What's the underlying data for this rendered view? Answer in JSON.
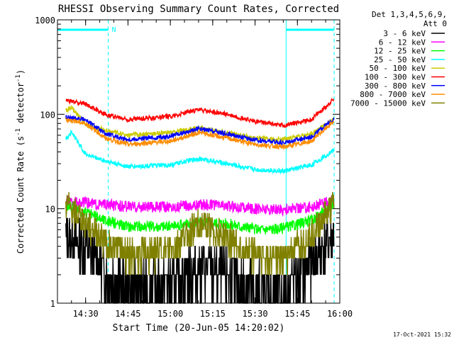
{
  "chart_data": {
    "type": "line",
    "title": "RHESSI Observing Summary Count Rates, Corrected",
    "xlabel": "Start Time (20-Jun-05 14:20:02)",
    "ylabel_main": "Corrected Count Rate (s",
    "ylabel_sup1": "-1",
    "ylabel_mid": " detector",
    "ylabel_sup2": "-1",
    "ylabel_end": ")",
    "yscale": "log",
    "ylim": [
      1,
      1000
    ],
    "xlim": [
      "14:20:02",
      "16:00"
    ],
    "x_ticks": [
      "14:30",
      "14:45",
      "15:00",
      "15:15",
      "15:30",
      "15:45",
      "16:00"
    ],
    "y_ticks": [
      "1",
      "10",
      "100",
      "1000"
    ],
    "footer": "17-Oct-2021 15:32",
    "legend_header": [
      "Det 1,3,4,5,6,9,",
      "Att 0"
    ],
    "legend_position": "right",
    "marker_label": "N",
    "markers": [
      {
        "time": "14:20:02",
        "style": "solid"
      },
      {
        "time": "14:38",
        "style": "dashed"
      },
      {
        "time": "15:41",
        "style": "solid"
      },
      {
        "time": "15:58",
        "style": "dashed"
      }
    ],
    "night_bars": [
      {
        "start": "14:20:02",
        "end": "14:38"
      },
      {
        "start": "15:41",
        "end": "15:58"
      }
    ],
    "series": [
      {
        "name": "3 - 6 keV",
        "color": "#000000",
        "x": [
          "14:23",
          "14:30",
          "14:37",
          "14:45",
          "15:00",
          "15:10",
          "15:20",
          "15:30",
          "15:40",
          "15:50",
          "15:58"
        ],
        "values": [
          5,
          4,
          2.2,
          1.4,
          1.6,
          2.3,
          2.0,
          1.4,
          1.3,
          2.8,
          5.5
        ]
      },
      {
        "name": "6 - 12 keV",
        "color": "#ff00ff",
        "x": [
          "14:23",
          "14:30",
          "14:37",
          "14:45",
          "15:00",
          "15:10",
          "15:20",
          "15:30",
          "15:40",
          "15:50",
          "15:58"
        ],
        "values": [
          12,
          11.5,
          11,
          10.5,
          10.5,
          11,
          10.8,
          10,
          9.8,
          10.5,
          12.5
        ]
      },
      {
        "name": "12 - 25 keV",
        "color": "#00ff00",
        "x": [
          "14:23",
          "14:30",
          "14:37",
          "14:45",
          "15:00",
          "15:10",
          "15:20",
          "15:30",
          "15:40",
          "15:50",
          "15:58"
        ],
        "values": [
          11,
          9,
          7.5,
          6.5,
          6.5,
          7.2,
          7,
          6,
          6.2,
          7.5,
          11.5
        ]
      },
      {
        "name": "25 - 50 keV",
        "color": "#00ffff",
        "x": [
          "14:23",
          "14:25",
          "14:30",
          "14:37",
          "14:45",
          "15:00",
          "15:10",
          "15:20",
          "15:30",
          "15:40",
          "15:50",
          "15:58"
        ],
        "values": [
          55,
          65,
          38,
          32,
          28,
          29,
          34,
          30,
          26,
          25,
          29,
          42
        ]
      },
      {
        "name": "50 - 100 keV",
        "color": "#cccc00",
        "x": [
          "14:23",
          "14:25",
          "14:30",
          "14:37",
          "14:45",
          "15:00",
          "15:10",
          "15:20",
          "15:30",
          "15:40",
          "15:50",
          "15:58"
        ],
        "values": [
          110,
          118,
          78,
          68,
          60,
          64,
          72,
          64,
          56,
          54,
          62,
          90
        ]
      },
      {
        "name": "100 - 300 keV",
        "color": "#ff0000",
        "x": [
          "14:23",
          "14:30",
          "14:37",
          "14:45",
          "15:00",
          "15:10",
          "15:20",
          "15:30",
          "15:40",
          "15:50",
          "15:58"
        ],
        "values": [
          140,
          128,
          100,
          88,
          95,
          112,
          100,
          84,
          76,
          88,
          145
        ]
      },
      {
        "name": "300 - 800 keV",
        "color": "#0000ff",
        "x": [
          "14:23",
          "14:30",
          "14:37",
          "14:45",
          "15:00",
          "15:10",
          "15:20",
          "15:30",
          "15:40",
          "15:50",
          "15:58"
        ],
        "values": [
          93,
          88,
          62,
          54,
          58,
          70,
          62,
          53,
          50,
          58,
          90
        ]
      },
      {
        "name": "800 - 7000 keV",
        "color": "#ff8c00",
        "x": [
          "14:23",
          "14:30",
          "14:37",
          "14:45",
          "15:00",
          "15:10",
          "15:20",
          "15:30",
          "15:40",
          "15:50",
          "15:58"
        ],
        "values": [
          88,
          80,
          56,
          48,
          52,
          64,
          56,
          48,
          45,
          52,
          85
        ]
      },
      {
        "name": "7000 - 15000 keV",
        "color": "#808000",
        "x": [
          "14:23",
          "14:30",
          "14:37",
          "14:45",
          "15:00",
          "15:10",
          "15:20",
          "15:30",
          "15:40",
          "15:50",
          "15:58"
        ],
        "values": [
          11,
          7,
          4.5,
          3.2,
          3.6,
          7,
          5,
          3.2,
          3,
          5.5,
          11
        ]
      }
    ]
  }
}
